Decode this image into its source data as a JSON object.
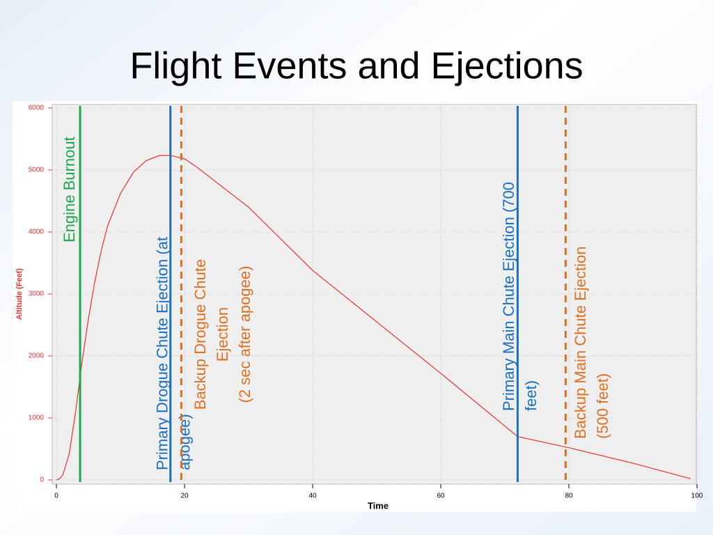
{
  "title": "Flight Events and Ejections",
  "chart_data": {
    "type": "line",
    "xlabel": "Time",
    "ylabel": "Altitude (Feet)",
    "xlim": [
      0,
      100
    ],
    "xticks": [
      0,
      20,
      40,
      60,
      80,
      100
    ],
    "ylim": [
      0,
      6000
    ],
    "yticks": [
      0,
      1000,
      2000,
      3000,
      4000,
      5000,
      6000
    ],
    "grid": true,
    "series": [
      {
        "name": "Altitude",
        "color": "#e8302a",
        "x": [
          0,
          0.5,
          1,
          2,
          3,
          4,
          5,
          6,
          7,
          8,
          10,
          12,
          14,
          16,
          17.8,
          20,
          22,
          30,
          40,
          50,
          60,
          72,
          80,
          90,
          99
        ],
        "values": [
          0,
          20,
          80,
          420,
          1100,
          1900,
          2600,
          3200,
          3700,
          4100,
          4620,
          4960,
          5150,
          5230,
          5235,
          5180,
          5040,
          4400,
          3380,
          2550,
          1720,
          700,
          520,
          270,
          20
        ]
      }
    ],
    "events": [
      {
        "lines": [
          "Engine Burnout"
        ],
        "x": 3.7,
        "color": "#1aa84a",
        "dashed": false
      },
      {
        "lines": [
          "Primary Drogue Chute Ejection (at",
          "apogee)"
        ],
        "x": 17.8,
        "color": "#1a6fc0",
        "dashed": false
      },
      {
        "lines": [
          "Backup Drogue Chute",
          "Ejection",
          "(2 sec after apogee)"
        ],
        "x": 19.5,
        "color": "#e07020",
        "dashed": true
      },
      {
        "lines": [
          "Primary Main Chute Ejection (700",
          "feet)"
        ],
        "x": 72,
        "color": "#1a6fc0",
        "dashed": false
      },
      {
        "lines": [
          "Backup Main Chute Ejection",
          "(500 feet)"
        ],
        "x": 79.5,
        "color": "#e07020",
        "dashed": true
      }
    ]
  }
}
